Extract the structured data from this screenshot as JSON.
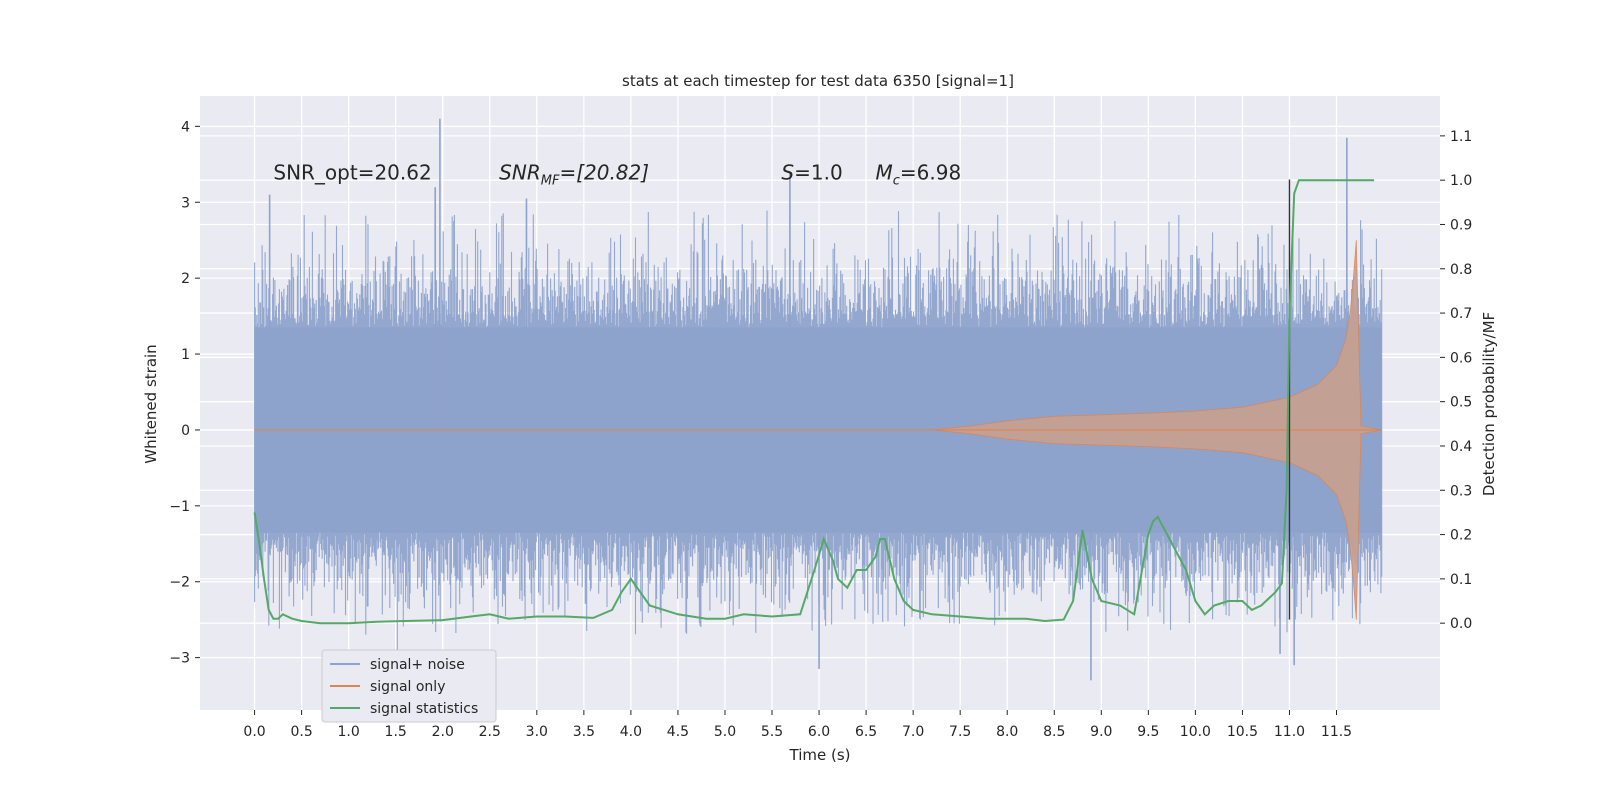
{
  "chart_data": {
    "type": "line",
    "title": "stats at each timestep for test data 6350 [signal=1]",
    "xlabel": "Time (s)",
    "ylabel_left": "Whitened strain",
    "ylabel_right": "Detection probability/MF",
    "xlim": [
      -0.58,
      12.6
    ],
    "ylim_left": [
      -3.69,
      4.4
    ],
    "ylim_right": [
      -0.196,
      1.19
    ],
    "x_ticks": [
      "0.0",
      "0.5",
      "1.0",
      "1.5",
      "2.0",
      "2.5",
      "3.0",
      "3.5",
      "4.0",
      "4.5",
      "5.0",
      "5.5",
      "6.0",
      "6.5",
      "7.0",
      "7.5",
      "8.0",
      "8.5",
      "9.0",
      "9.5",
      "10.0",
      "10.5",
      "11.0",
      "11.5"
    ],
    "y_ticks_left": [
      "−3",
      "−2",
      "−1",
      "0",
      "1",
      "2",
      "3",
      "4"
    ],
    "y_ticks_right": [
      "0.0",
      "0.1",
      "0.2",
      "0.3",
      "0.4",
      "0.5",
      "0.6",
      "0.7",
      "0.8",
      "0.9",
      "1.0",
      "1.1"
    ],
    "grid": true,
    "legend_position": "lower-left",
    "annotations": [
      {
        "id": "snr-opt",
        "label": "SNR_opt=20.62",
        "x": 0.2,
        "y": 3.3
      },
      {
        "id": "snr-mf",
        "label": "SNR",
        "sub": "MF",
        "suffix": "=[20.82]",
        "x": 2.6,
        "y": 3.3
      },
      {
        "id": "s",
        "label": "S",
        "suffix": "=1.0",
        "x": 5.6,
        "y": 3.3
      },
      {
        "id": "mc",
        "label": "M",
        "sub": "c",
        "suffix": "=6.98",
        "x": 6.6,
        "y": 3.3
      }
    ],
    "vline": {
      "x": 11.0,
      "ymin": -2.5,
      "ymax": 3.3,
      "color": "#333333"
    },
    "series": [
      {
        "name": "signal+ noise",
        "axis": "left",
        "color": "#8ea3cc",
        "t_end": 11.98,
        "band_core": 1.35,
        "extreme_peaks": [
          {
            "x": 1.97,
            "y": 4.1
          },
          {
            "x": 1.92,
            "y": 3.2
          },
          {
            "x": 0.16,
            "y": 3.1
          },
          {
            "x": 2.89,
            "y": 3.05
          },
          {
            "x": 5.69,
            "y": 3.4
          },
          {
            "x": 11.61,
            "y": 3.85
          },
          {
            "x": 6.0,
            "y": -3.15
          },
          {
            "x": 8.89,
            "y": -3.3
          },
          {
            "x": 10.9,
            "y": -2.95
          },
          {
            "x": 11.05,
            "y": -3.1
          }
        ]
      },
      {
        "name": "signal only",
        "axis": "left",
        "color": "#dd8452",
        "envelope": [
          [
            0.0,
            0.0
          ],
          [
            7.2,
            0.0
          ],
          [
            7.6,
            0.05
          ],
          [
            8.0,
            0.12
          ],
          [
            8.5,
            0.18
          ],
          [
            9.5,
            0.22
          ],
          [
            10.0,
            0.25
          ],
          [
            10.5,
            0.3
          ],
          [
            11.0,
            0.43
          ],
          [
            11.3,
            0.6
          ],
          [
            11.5,
            0.85
          ],
          [
            11.6,
            1.2
          ],
          [
            11.65,
            1.6
          ],
          [
            11.68,
            2.0
          ],
          [
            11.71,
            2.5
          ],
          [
            11.74,
            1.0
          ],
          [
            11.76,
            0.05
          ],
          [
            11.98,
            0.0
          ]
        ]
      },
      {
        "name": "signal statistics",
        "axis": "right",
        "color": "#55a868",
        "x": [
          0.0,
          0.05,
          0.1,
          0.15,
          0.2,
          0.25,
          0.3,
          0.4,
          0.5,
          0.7,
          1.0,
          1.3,
          1.6,
          2.0,
          2.3,
          2.5,
          2.7,
          3.0,
          3.3,
          3.6,
          3.8,
          3.9,
          4.0,
          4.1,
          4.2,
          4.5,
          4.8,
          5.0,
          5.2,
          5.5,
          5.8,
          5.95,
          6.05,
          6.15,
          6.2,
          6.3,
          6.4,
          6.5,
          6.6,
          6.65,
          6.7,
          6.8,
          6.9,
          7.0,
          7.2,
          7.5,
          7.8,
          8.0,
          8.2,
          8.4,
          8.6,
          8.7,
          8.8,
          8.9,
          9.0,
          9.2,
          9.35,
          9.5,
          9.55,
          9.6,
          9.7,
          9.9,
          10.0,
          10.1,
          10.2,
          10.35,
          10.5,
          10.6,
          10.7,
          10.8,
          10.85,
          10.92,
          10.97,
          11.0,
          11.05,
          11.1,
          11.2,
          11.5,
          11.9
        ],
        "y": [
          0.25,
          0.18,
          0.1,
          0.03,
          0.01,
          0.01,
          0.02,
          0.01,
          0.005,
          0.0,
          0.0,
          0.003,
          0.005,
          0.007,
          0.015,
          0.02,
          0.01,
          0.015,
          0.015,
          0.012,
          0.03,
          0.07,
          0.1,
          0.07,
          0.04,
          0.02,
          0.01,
          0.01,
          0.02,
          0.015,
          0.02,
          0.12,
          0.19,
          0.14,
          0.1,
          0.08,
          0.12,
          0.12,
          0.15,
          0.19,
          0.19,
          0.1,
          0.05,
          0.03,
          0.02,
          0.015,
          0.01,
          0.01,
          0.01,
          0.005,
          0.008,
          0.05,
          0.21,
          0.1,
          0.05,
          0.04,
          0.02,
          0.2,
          0.23,
          0.24,
          0.2,
          0.12,
          0.05,
          0.02,
          0.04,
          0.05,
          0.05,
          0.03,
          0.04,
          0.06,
          0.07,
          0.09,
          0.3,
          0.7,
          0.97,
          1.0,
          1.0,
          1.0,
          1.0
        ]
      }
    ]
  }
}
